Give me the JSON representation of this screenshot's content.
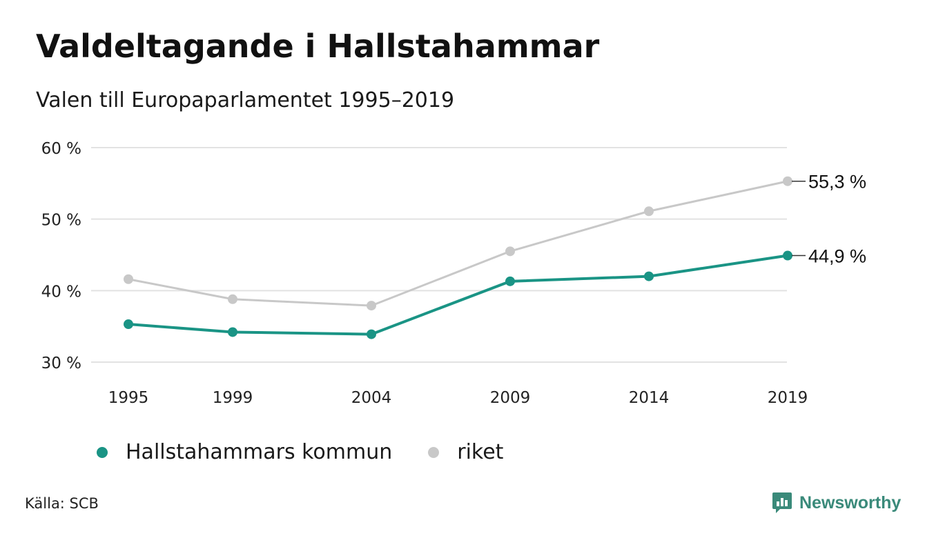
{
  "title": "Valdeltagande i Hallstahammar",
  "subtitle": "Valen till Europaparlamentet 1995–2019",
  "source": "Källa: SCB",
  "brand": "Newsworthy",
  "colors": {
    "kommun": "#1a9485",
    "riket": "#c8c8c8",
    "grid": "#e2e2e2",
    "brand": "#3a8a7a"
  },
  "chart_data": {
    "type": "line",
    "title": "Valdeltagande i Hallstahammar",
    "subtitle": "Valen till Europaparlamentet 1995–2019",
    "x": [
      "1995",
      "1999",
      "2004",
      "2009",
      "2014",
      "2019"
    ],
    "ylim": [
      30,
      60
    ],
    "yticks": [
      30,
      40,
      50,
      60
    ],
    "ytick_labels": [
      "30 %",
      "40 %",
      "50 %",
      "60 %"
    ],
    "grid": true,
    "legend_position": "bottom",
    "series": [
      {
        "name": "riket",
        "values": [
          41.6,
          38.8,
          37.9,
          45.5,
          51.1,
          55.3
        ],
        "end_label": "55,3 %"
      },
      {
        "name": "Hallstahammars kommun",
        "values": [
          35.3,
          34.2,
          33.9,
          41.3,
          42.0,
          44.9
        ],
        "end_label": "44,9 %"
      }
    ]
  },
  "legend": [
    {
      "label": "Hallstahammars kommun",
      "color": "#1a9485"
    },
    {
      "label": "riket",
      "color": "#c8c8c8"
    }
  ]
}
